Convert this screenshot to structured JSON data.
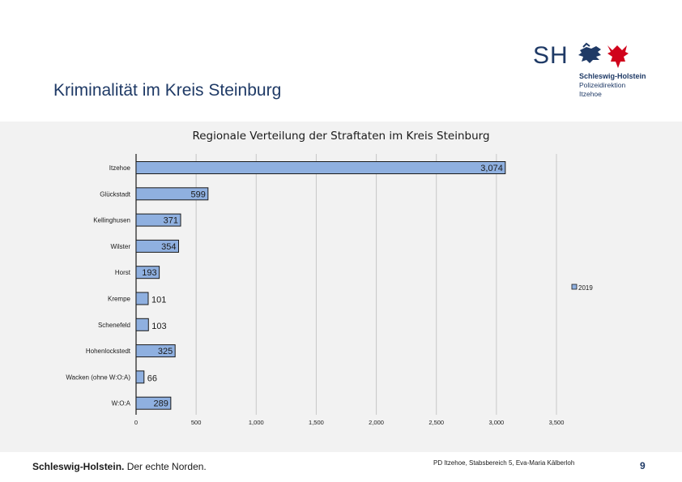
{
  "header": {
    "title": "Kriminalität im Kreis Steinburg"
  },
  "logo": {
    "mark": "SH",
    "org_name": "Schleswig-Holstein",
    "org_sub1": "Polizeidirektion",
    "org_sub2": "Itzehoe"
  },
  "colors": {
    "title": "#1f3a66",
    "bar_fill": "#8fb0e0",
    "bar_stroke": "#1a1a1a",
    "panel": "#f2f2f2",
    "grid": "#c8c8c8"
  },
  "chart_data": {
    "type": "bar",
    "orientation": "horizontal",
    "title": "Regionale Verteilung der Straftaten im Kreis Steinburg",
    "categories": [
      "Itzehoe",
      "Glückstadt",
      "Kellinghusen",
      "Wilster",
      "Horst",
      "Krempe",
      "Schenefeld",
      "Hohenlockstedt",
      "Wacken (ohne W:O:A)",
      "W:O:A"
    ],
    "series": [
      {
        "name": "2019",
        "values": [
          3074,
          599,
          371,
          354,
          193,
          101,
          103,
          325,
          66,
          289
        ],
        "labels": [
          "3,074",
          "599",
          "371",
          "354",
          "193",
          "101",
          "103",
          "325",
          "66",
          "289"
        ]
      }
    ],
    "xlim": [
      0,
      3500
    ],
    "xticks": [
      0,
      500,
      1000,
      1500,
      2000,
      2500,
      3000,
      3500
    ],
    "xtick_labels": [
      "0",
      "500",
      "1,000",
      "1,500",
      "2,000",
      "2,500",
      "3,000",
      "3,500"
    ],
    "grid": true,
    "legend": "right"
  },
  "footer": {
    "slogan_bold": "Schleswig-Holstein.",
    "slogan_rest": " Der echte Norden.",
    "credit": "PD Itzehoe, Stabsbereich 5, Eva-Maria Kälberloh",
    "page": "9"
  }
}
